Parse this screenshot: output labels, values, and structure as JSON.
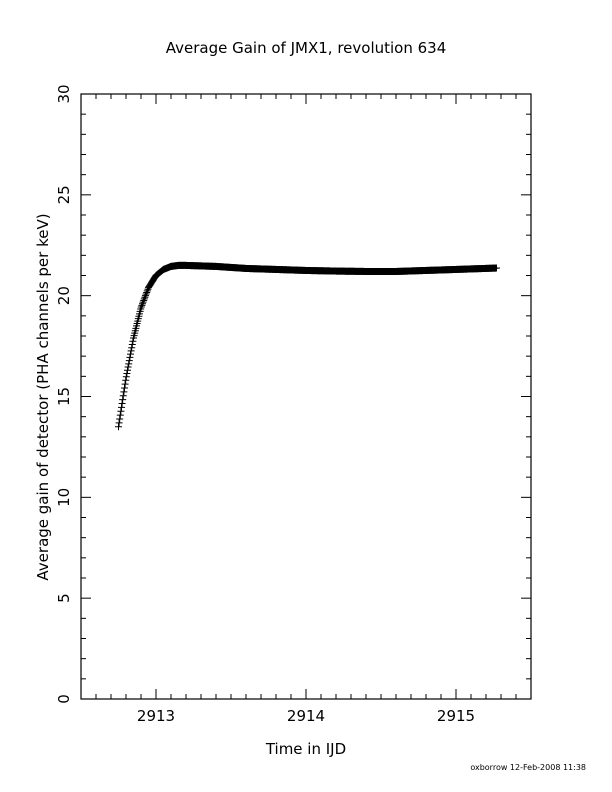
{
  "chart_data": {
    "type": "scatter",
    "title": "Average Gain of JMX1, revolution 634",
    "xlabel": "Time in IJD",
    "ylabel": "Average gain of detector (PHA channels per keV)",
    "xlim": [
      2912.5,
      2915.5
    ],
    "ylim": [
      0,
      30
    ],
    "x_ticks": [
      2913,
      2914,
      2915
    ],
    "y_ticks": [
      0,
      5,
      10,
      15,
      20,
      25,
      30
    ],
    "x_minor_step": 0.1,
    "y_minor_step": 1,
    "grid": false,
    "marker": "+",
    "color": "#000000",
    "x_start": 2912.75,
    "x_end": 2915.27,
    "curve_points": [
      [
        2912.75,
        13.5
      ],
      [
        2912.8,
        15.9
      ],
      [
        2912.85,
        17.9
      ],
      [
        2912.9,
        19.4
      ],
      [
        2912.95,
        20.4
      ],
      [
        2913.0,
        21.0
      ],
      [
        2913.05,
        21.3
      ],
      [
        2913.1,
        21.45
      ],
      [
        2913.15,
        21.5
      ],
      [
        2913.2,
        21.5
      ],
      [
        2913.4,
        21.45
      ],
      [
        2913.6,
        21.35
      ],
      [
        2913.8,
        21.3
      ],
      [
        2914.0,
        21.25
      ],
      [
        2914.2,
        21.22
      ],
      [
        2914.4,
        21.2
      ],
      [
        2914.6,
        21.2
      ],
      [
        2914.8,
        21.25
      ],
      [
        2915.0,
        21.3
      ],
      [
        2915.27,
        21.37
      ]
    ]
  },
  "footer": "oxborrow 12-Feb-2008 11:38"
}
